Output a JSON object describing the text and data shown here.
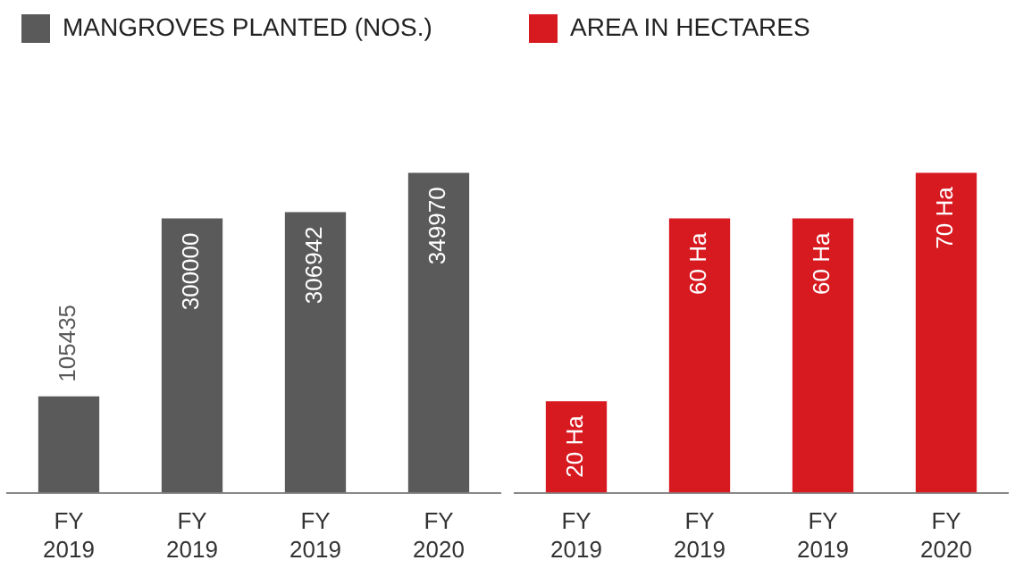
{
  "chart_data": [
    {
      "type": "bar",
      "categories": [
        "FY 2019",
        "FY 2019",
        "FY 2019",
        "FY 2020"
      ],
      "series": [
        {
          "name": "MANGROVES PLANTED (NOS.)",
          "color": "#5a5a5a",
          "values": [
            105435,
            300000,
            306942,
            349970
          ]
        }
      ],
      "data_labels": true,
      "legend": "top",
      "grid": false
    },
    {
      "type": "bar",
      "categories": [
        "FY 2019",
        "FY 2019",
        "FY 2019",
        "FY 2020"
      ],
      "series": [
        {
          "name": "AREA IN HECTARES",
          "color": "#d71920",
          "values": [
            20,
            60,
            60,
            70
          ],
          "value_labels": [
            "20 Ha",
            "60 Ha",
            "60 Ha",
            "70 Ha"
          ]
        }
      ],
      "legend": "top",
      "grid": false
    }
  ]
}
